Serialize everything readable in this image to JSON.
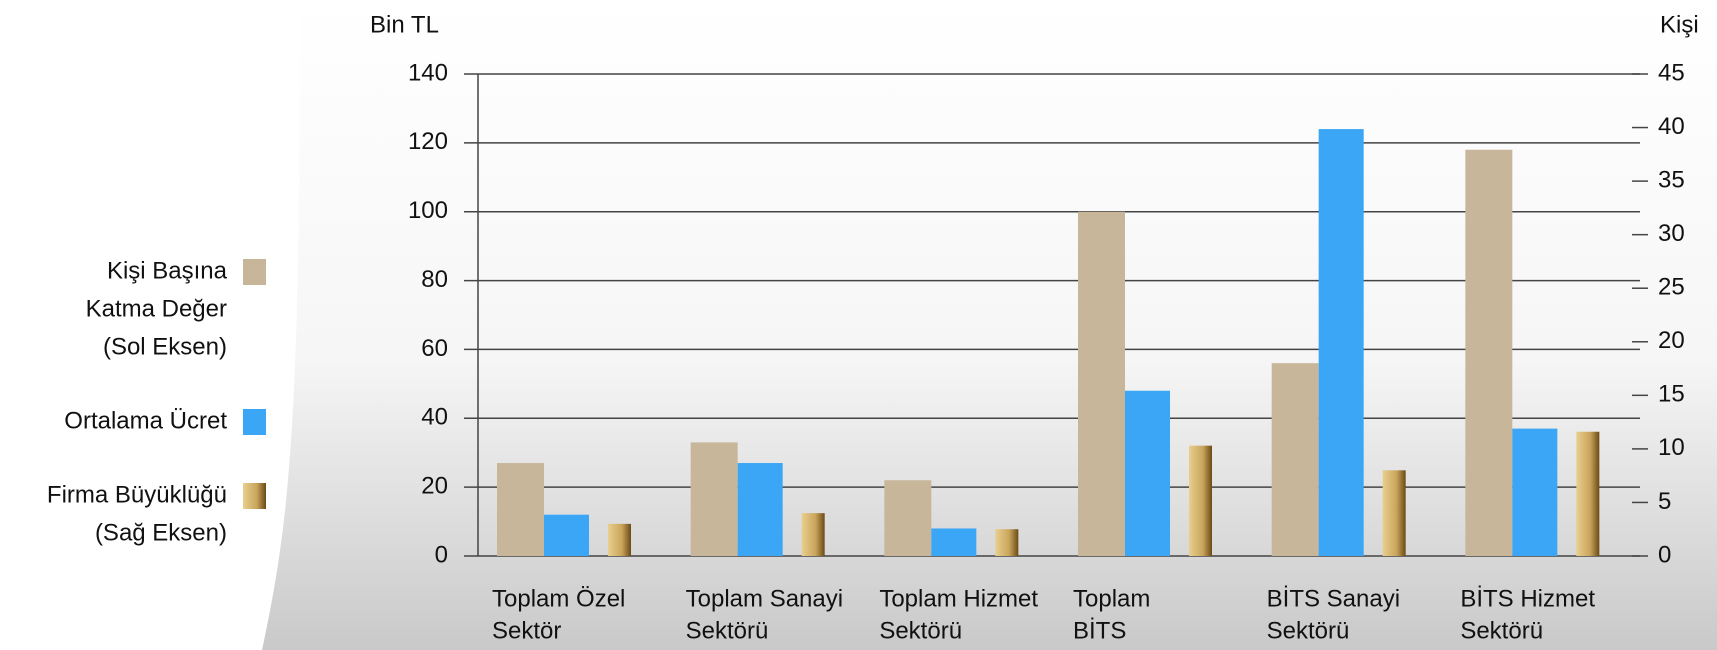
{
  "chart_data": {
    "type": "bar",
    "y_label": "Bin TL",
    "y2_label": "Kişi",
    "categories": [
      [
        "Toplam Özel",
        "Sektör"
      ],
      [
        "Toplam Sanayi",
        "Sektörü"
      ],
      [
        "Toplam Hizmet",
        "Sektörü"
      ],
      [
        "Toplam",
        "BİTS"
      ],
      [
        "BİTS Sanayi",
        "Sektörü"
      ],
      [
        "BİTS Hizmet",
        "Sektörü"
      ]
    ],
    "series": [
      {
        "name": [
          "Kişi Başına",
          "Katma Değer",
          "(Sol Eksen)"
        ],
        "color": "#c8b69a",
        "values": [
          27,
          33,
          22,
          100,
          56,
          118
        ]
      },
      {
        "name": [
          "Ortalama Ücret"
        ],
        "color": "#3aa6f5",
        "values": [
          12,
          27,
          8,
          48,
          124,
          37
        ]
      },
      {
        "name": [
          "Firma Büyüklüğü",
          "(Sağ Eksen)"
        ],
        "color": "#c9a55c",
        "axis": "y2",
        "values": [
          3,
          4,
          2.5,
          10.3,
          8,
          11.6
        ]
      }
    ],
    "ylim": [
      0,
      140
    ],
    "yticks": [
      0,
      20,
      40,
      60,
      80,
      100,
      120,
      140
    ],
    "y2lim": [
      0,
      45
    ],
    "y2ticks": [
      0,
      5,
      10,
      15,
      20,
      25,
      30,
      35,
      40,
      45
    ],
    "grid": true,
    "legend": "left"
  }
}
